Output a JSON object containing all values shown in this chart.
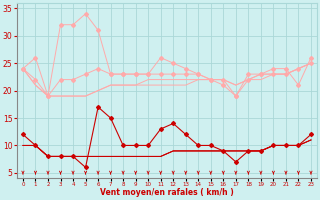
{
  "x": [
    0,
    1,
    2,
    3,
    4,
    5,
    6,
    7,
    8,
    9,
    10,
    11,
    12,
    13,
    14,
    15,
    16,
    17,
    18,
    19,
    20,
    21,
    22,
    23
  ],
  "dark_line1_markers": [
    12,
    10,
    8,
    8,
    8,
    6,
    17,
    15,
    10,
    10,
    10,
    13,
    14,
    12,
    10,
    10,
    9,
    7,
    9,
    9,
    10,
    10,
    10,
    12
  ],
  "dark_line2_flat": [
    10,
    10,
    8,
    8,
    8,
    8,
    8,
    8,
    8,
    8,
    8,
    8,
    9,
    9,
    9,
    9,
    9,
    9,
    9,
    9,
    10,
    10,
    10,
    11
  ],
  "dark_line3_flat": [
    10,
    10,
    8,
    8,
    8,
    8,
    8,
    8,
    8,
    8,
    8,
    8,
    9,
    9,
    9,
    9,
    9,
    9,
    9,
    9,
    10,
    10,
    10,
    11
  ],
  "dark_line4_flat": [
    10,
    10,
    8,
    8,
    8,
    8,
    8,
    8,
    8,
    8,
    8,
    8,
    9,
    9,
    9,
    9,
    9,
    9,
    9,
    9,
    10,
    10,
    10,
    11
  ],
  "light_line1_peaks": [
    24,
    26,
    19,
    32,
    32,
    34,
    31,
    23,
    23,
    23,
    23,
    26,
    25,
    24,
    23,
    22,
    22,
    19,
    23,
    23,
    24,
    24,
    21,
    26
  ],
  "light_line2_markers": [
    24,
    22,
    19,
    22,
    22,
    23,
    24,
    23,
    23,
    23,
    23,
    23,
    23,
    23,
    23,
    22,
    21,
    19,
    22,
    23,
    23,
    23,
    24,
    25
  ],
  "light_line3_gradual": [
    24,
    21,
    19,
    19,
    19,
    19,
    20,
    21,
    21,
    21,
    22,
    22,
    22,
    22,
    22,
    22,
    22,
    21,
    22,
    23,
    23,
    23,
    24,
    25
  ],
  "light_line4_base": [
    24,
    21,
    19,
    19,
    19,
    19,
    20,
    21,
    21,
    21,
    21,
    21,
    21,
    21,
    22,
    22,
    22,
    21,
    22,
    22,
    23,
    23,
    24,
    25
  ],
  "ylim": [
    4,
    36
  ],
  "yticks": [
    5,
    10,
    15,
    20,
    25,
    30,
    35
  ],
  "xlabel": "Vent moyen/en rafales ( km/h )",
  "bg_color": "#cff0f0",
  "grid_color": "#aad8d8",
  "dark_red": "#cc0000",
  "light_red": "#ffaaaa",
  "marker_style": "D"
}
